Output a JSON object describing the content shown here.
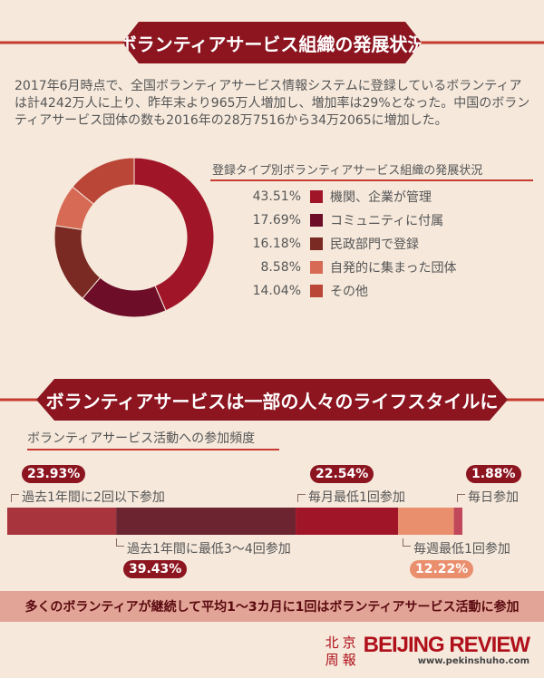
{
  "section1": {
    "heading": "ボランティアサービス組織の発展状況",
    "intro": "2017年6月時点で、全国ボランティアサービス情報システムに登録しているボランティアは計4242万人に上り、昨年末より965万人増加し、増加率は29%となった。中国のボランティアサービス団体の数も2016年の28万7516から34万2065に増加した。"
  },
  "section2": {
    "heading": "ボランティアサービスは一部の人々のライフスタイルに",
    "footer": "多くのボランティアが継続して平均1～3カ月に1回はボランティアサービス活動に参加"
  },
  "logo": {
    "seal": [
      "北",
      "京",
      "周",
      "報"
    ],
    "name": "BEIJING REVIEW",
    "url": "www.pekinshuho.com"
  },
  "colors": {
    "title_bg": "#8c1520",
    "accent_rule": "#c73a2f",
    "background": "#f6e9dc"
  },
  "chart_data": [
    {
      "type": "pie",
      "title": "登録タイプ別ボランティアサービス組織の発展状況",
      "legend": "right",
      "slices": [
        {
          "label": "機関、企業が管理",
          "display": "43.51%",
          "value": 43.51,
          "color": "#a01628"
        },
        {
          "label": "コミュニティに付属",
          "display": "17.69%",
          "value": 17.69,
          "color": "#6d0d28"
        },
        {
          "label": "民政部門で登録",
          "display": "16.18%",
          "value": 16.18,
          "color": "#7a2a22"
        },
        {
          "label": "自発的に集まった団体",
          "display": "8.58%",
          "value": 8.58,
          "color": "#d66a55"
        },
        {
          "label": "その他",
          "display": "14.04%",
          "value": 14.04,
          "color": "#b94637"
        }
      ]
    },
    {
      "type": "bar",
      "title": "ボランティアサービス活動への参加頻度",
      "segments": [
        {
          "label": "過去1年間に2回以下参加",
          "display": "23.93%",
          "value": 23.93,
          "color": "#a8353e"
        },
        {
          "label": "過去1年間に最低3～4回参加",
          "display": "39.43%",
          "value": 39.43,
          "color": "#6b2430"
        },
        {
          "label": "毎月最低1回参加",
          "display": "22.54%",
          "value": 22.54,
          "color": "#a01628"
        },
        {
          "label": "毎週最低1回参加",
          "display": "12.22%",
          "value": 12.22,
          "color": "#ea8f6e"
        },
        {
          "label": "毎日参加",
          "display": "1.88%",
          "value": 1.88,
          "color": "#c0485a"
        }
      ]
    }
  ]
}
